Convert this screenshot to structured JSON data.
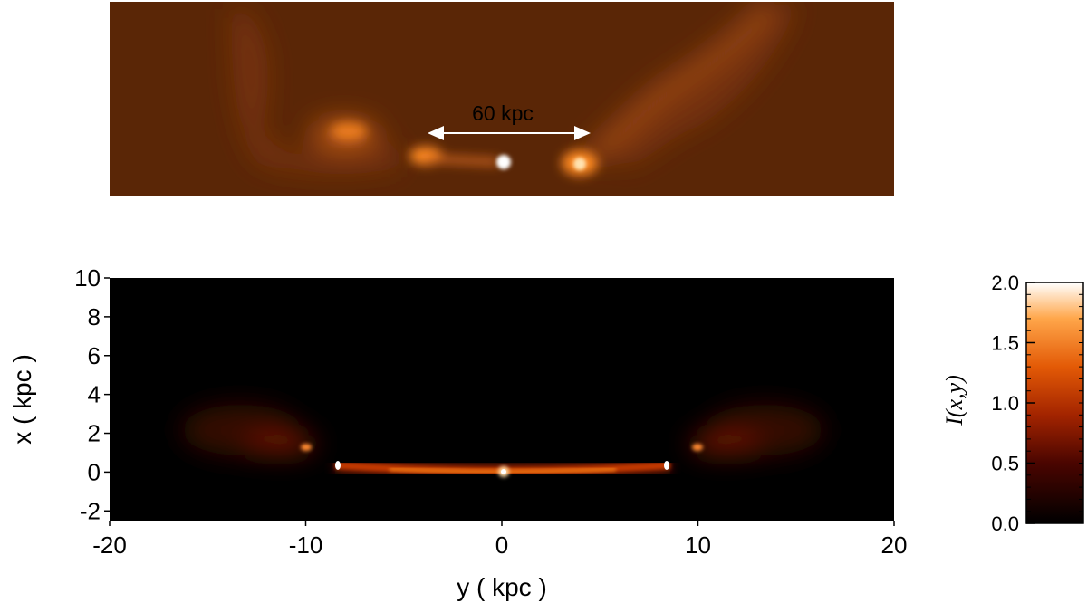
{
  "top_panel": {
    "scale_label": "60 kpc",
    "background_color": "#5a2606",
    "glow_color": "#ff9a30"
  },
  "chart_data": {
    "type": "heatmap",
    "xlabel": "y ( kpc )",
    "ylabel": "x ( kpc )",
    "xlim": [
      -20,
      20
    ],
    "ylim": [
      -2.5,
      10
    ],
    "x_ticks": [
      "-20",
      "-10",
      "0",
      "10",
      "20"
    ],
    "y_ticks": [
      "-2",
      "0",
      "2",
      "4",
      "6",
      "8",
      "10"
    ],
    "grid": false,
    "features": {
      "jet_axis_x": 0.2,
      "jet_extent_y": [
        -8.5,
        8.5
      ],
      "hotspots_y": [
        -8.4,
        8.4
      ],
      "lobe_extent_y": [
        -16,
        16
      ]
    },
    "colorbar": {
      "label": "I(x,y)",
      "range": [
        0.0,
        2.0
      ],
      "ticks": [
        "0.0",
        "0.5",
        "1.0",
        "1.5",
        "2.0"
      ],
      "colors": [
        "#000000",
        "#4a0500",
        "#a32400",
        "#e35a06",
        "#ffa64a",
        "#ffffff"
      ]
    }
  }
}
